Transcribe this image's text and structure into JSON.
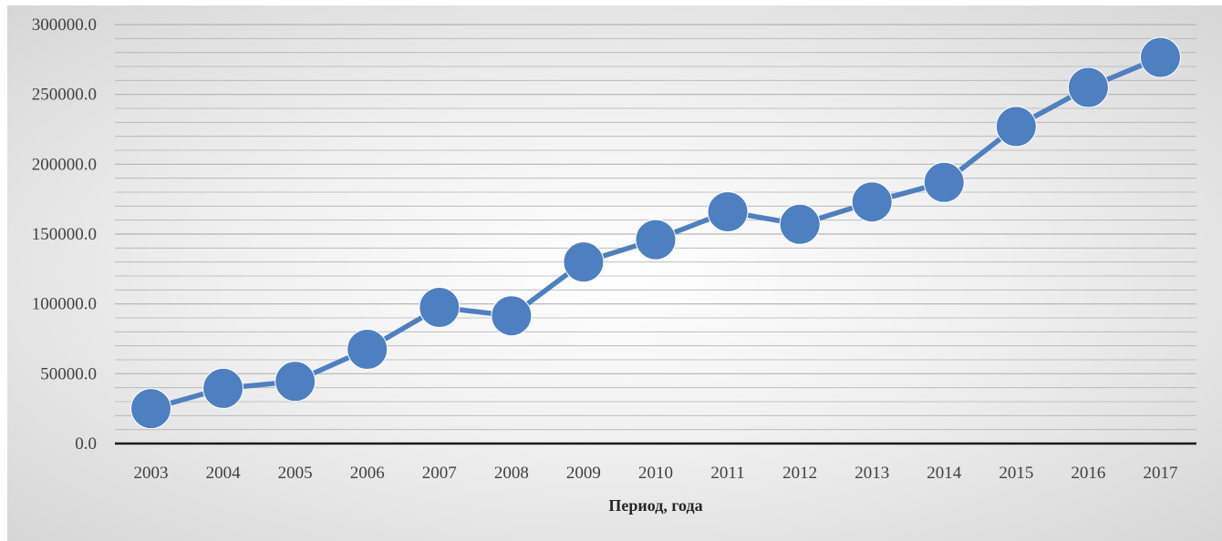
{
  "chart_data": {
    "type": "line",
    "categories": [
      "2003",
      "2004",
      "2005",
      "2006",
      "2007",
      "2008",
      "2009",
      "2010",
      "2011",
      "2012",
      "2013",
      "2014",
      "2015",
      "2016",
      "2017"
    ],
    "series": [
      {
        "values": [
          25000,
          39500,
          44500,
          67500,
          97500,
          91500,
          130000,
          146000,
          166000,
          157000,
          173000,
          187000,
          227000,
          255000,
          276500
        ]
      }
    ],
    "xlabel": "Период, года",
    "ylabel": "",
    "ylim": [
      0,
      300000
    ],
    "y_major_step": 50000,
    "y_minor_step": 10000,
    "ytick_labels": [
      "0.0",
      "50000.0",
      "100000.0",
      "150000.0",
      "200000.0",
      "250000.0",
      "300000.0"
    ],
    "grid": true,
    "colors": {
      "line": "#4e7fc0",
      "marker": "#4e7fc0",
      "grid": "#b4b4b4",
      "axis": "#1a1a1a"
    }
  }
}
